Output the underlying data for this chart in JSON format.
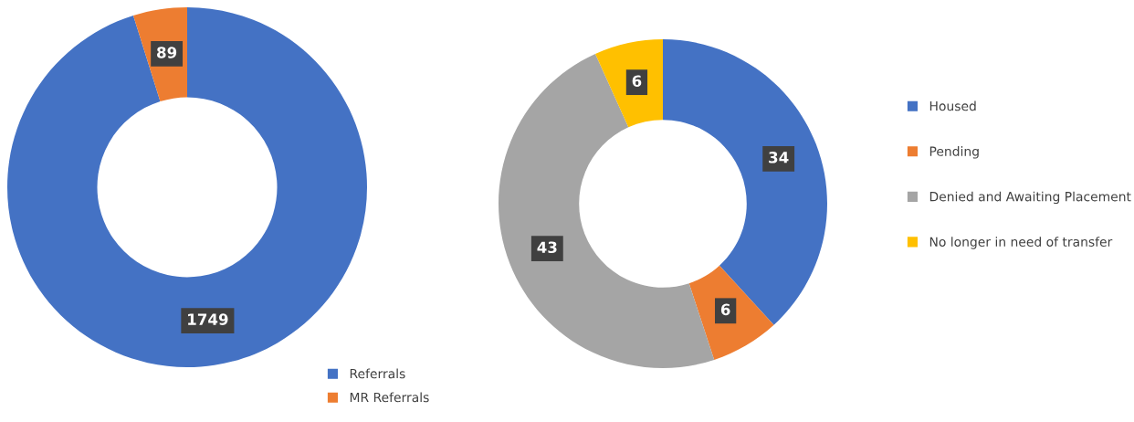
{
  "chart_data": [
    {
      "type": "donut",
      "categories": [
        "Referrals",
        "MR Referrals"
      ],
      "values": [
        1749,
        89
      ],
      "colors": [
        "#4472c4",
        "#ed7d31"
      ],
      "data_labels": true,
      "legend": "bottom right"
    },
    {
      "type": "donut",
      "categories": [
        "Housed",
        "Pending",
        "Denied and Awaiting Placement",
        "No longer in need of transfer"
      ],
      "values": [
        34,
        6,
        43,
        6
      ],
      "colors": [
        "#4472c4",
        "#ed7d31",
        "#a5a5a5",
        "#ffc000"
      ],
      "data_labels": true,
      "legend": "right"
    }
  ]
}
